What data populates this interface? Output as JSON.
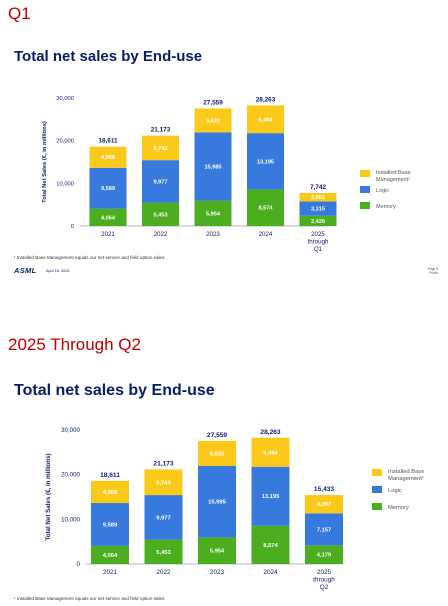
{
  "page": {
    "section1_label": "Q1",
    "section2_label": "2025 Through Q2"
  },
  "slide1": {
    "title": "Total net sales by End-use",
    "footnote": "¹ Installed Base Management equals our net service and field option sales.",
    "logo": "ASML",
    "date": "April 16, 2025",
    "page_number": "Page 8",
    "page_class": "Public"
  },
  "slide2": {
    "title": "Total net sales by End-use",
    "footnote": "¹ Installed Base Management equals our net service and field option sales."
  },
  "colors": {
    "memory": "#4cae1f",
    "logic": "#3779dd",
    "ibm": "#fbc91a",
    "title": "#0a1c6b",
    "section_label": "#c00000"
  },
  "chart_data": [
    {
      "type": "bar",
      "stacked": true,
      "ylabel": "Total Net Sales (€, in millions)",
      "ylim": [
        0,
        30000
      ],
      "yticks": [
        "0",
        "10,000",
        "20,000",
        "30,000"
      ],
      "yticks_values": [
        0,
        10000,
        20000,
        30000
      ],
      "grid": false,
      "legend_position": "right",
      "categories": [
        [
          "2021"
        ],
        [
          "2022"
        ],
        [
          "2023"
        ],
        [
          "2024"
        ],
        [
          "2025",
          "through",
          "Q1"
        ]
      ],
      "series": [
        {
          "name": "Memory",
          "color": "#4cae1f",
          "values": [
            4064,
            5453,
            5954,
            8574,
            2426
          ],
          "labels": [
            "4,064",
            "5,453",
            "5,954",
            "8,574",
            "2,426"
          ]
        },
        {
          "name": "Logic",
          "color": "#3779dd",
          "values": [
            9589,
            9977,
            15985,
            13195,
            3315
          ],
          "labels": [
            "9,589",
            "9,977",
            "15,985",
            "13,195",
            "3,315"
          ]
        },
        {
          "name": "Installed Base Management¹",
          "color": "#fbc91a",
          "values": [
            4958,
            5743,
            5620,
            6494,
            2001
          ],
          "labels": [
            "4,958",
            "5,743",
            "5,620",
            "6,494",
            "2,001"
          ]
        }
      ],
      "totals": [
        18611,
        21173,
        27559,
        28263,
        7742
      ],
      "totals_labels": [
        "18,611",
        "21,173",
        "27,559",
        "28,263",
        "7,742"
      ]
    },
    {
      "type": "bar",
      "stacked": true,
      "ylabel": "Total Net Sales (€, in millions)",
      "ylim": [
        0,
        30000
      ],
      "yticks": [
        "0",
        "10,000",
        "20,000",
        "30,000"
      ],
      "yticks_values": [
        0,
        10000,
        20000,
        30000
      ],
      "grid": false,
      "legend_position": "right",
      "categories": [
        [
          "2021"
        ],
        [
          "2022"
        ],
        [
          "2023"
        ],
        [
          "2024"
        ],
        [
          "2025",
          "through",
          "Q2"
        ]
      ],
      "series": [
        {
          "name": "Memory",
          "color": "#4cae1f",
          "values": [
            4064,
            5453,
            5954,
            8574,
            4179
          ],
          "labels": [
            "4,064",
            "5,453",
            "5,954",
            "8,574",
            "4,179"
          ]
        },
        {
          "name": "Logic",
          "color": "#3779dd",
          "values": [
            9589,
            9977,
            15985,
            13195,
            7157
          ],
          "labels": [
            "9,589",
            "9,977",
            "15,985",
            "13,195",
            "7,157"
          ]
        },
        {
          "name": "Installed Base Management¹",
          "color": "#fbc91a",
          "values": [
            4958,
            5743,
            5620,
            6494,
            4097
          ],
          "labels": [
            "4,958",
            "5,743",
            "5,620",
            "6,494",
            "4,097"
          ]
        }
      ],
      "totals": [
        18611,
        21173,
        27559,
        28263,
        15433
      ],
      "totals_labels": [
        "18,611",
        "21,173",
        "27,559",
        "28,263",
        "15,433"
      ]
    }
  ]
}
